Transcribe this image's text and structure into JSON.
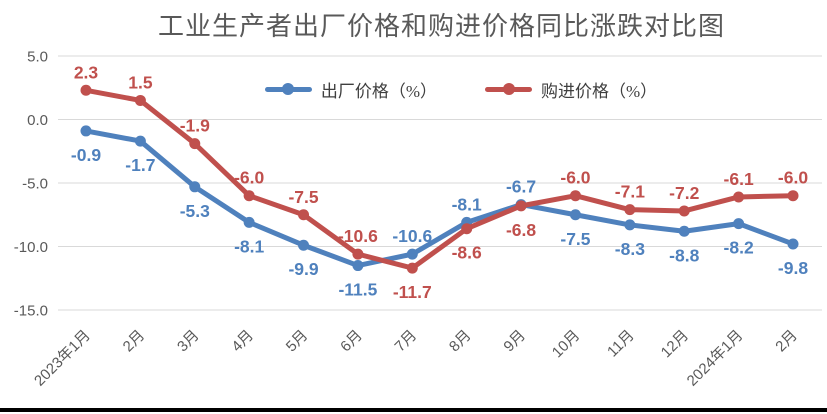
{
  "title": "工业生产者出厂价格和购进价格同比涨跌对比图",
  "colors": {
    "grid": "#D9D9D9",
    "axis_text": "#595959",
    "bottom_bar": "#000000"
  },
  "chart_data": {
    "type": "line",
    "title": "工业生产者出厂价格和购进价格同比涨跌对比图",
    "categories": [
      "2023年1月",
      "2月",
      "3月",
      "4月",
      "5月",
      "6月",
      "7月",
      "8月",
      "9月",
      "10月",
      "11月",
      "12月",
      "2024年1月",
      "2月"
    ],
    "series": [
      {
        "name": "出厂价格（%）",
        "color": "#4F81BD",
        "values": [
          -0.9,
          -1.7,
          -5.3,
          -8.1,
          -9.9,
          -11.5,
          -10.6,
          -8.1,
          -6.7,
          -7.5,
          -8.3,
          -8.8,
          -8.2,
          -9.8
        ],
        "labels": [
          "-0.9",
          "-1.7",
          "-5.3",
          "-8.1",
          "-9.9",
          "-11.5",
          "-10.6",
          "-8.1",
          "-6.7",
          "-7.5",
          "-8.3",
          "-8.8",
          "-8.2",
          "-9.8"
        ],
        "label_side": [
          "below",
          "below",
          "below",
          "below",
          "below",
          "below",
          "above",
          "above",
          "above",
          "below",
          "below",
          "below",
          "below",
          "below"
        ]
      },
      {
        "name": "购进价格（%）",
        "color": "#C0504D",
        "values": [
          2.3,
          1.5,
          -1.9,
          -6.0,
          -7.5,
          -10.6,
          -11.7,
          -8.6,
          -6.8,
          -6.0,
          -7.1,
          -7.2,
          -6.1,
          -6.0
        ],
        "labels": [
          "2.3",
          "1.5",
          "-1.9",
          "-6.0",
          "-7.5",
          "-10.6",
          "-11.7",
          "-8.6",
          "-6.8",
          "-6.0",
          "-7.1",
          "-7.2",
          "-6.1",
          "-6.0"
        ],
        "label_side": [
          "above",
          "above",
          "above",
          "above",
          "above",
          "above",
          "below",
          "below",
          "below",
          "above",
          "above",
          "above",
          "above",
          "above"
        ]
      }
    ],
    "ytick_labels": [
      "5.0",
      "0.0",
      "-5.0",
      "-10.0",
      "-15.0"
    ],
    "yticks": [
      5.0,
      0.0,
      -5.0,
      -10.0,
      -15.0
    ],
    "ylim": [
      -15.0,
      5.0
    ],
    "grid": true,
    "legend_position": "top-center",
    "marker": "circle"
  }
}
